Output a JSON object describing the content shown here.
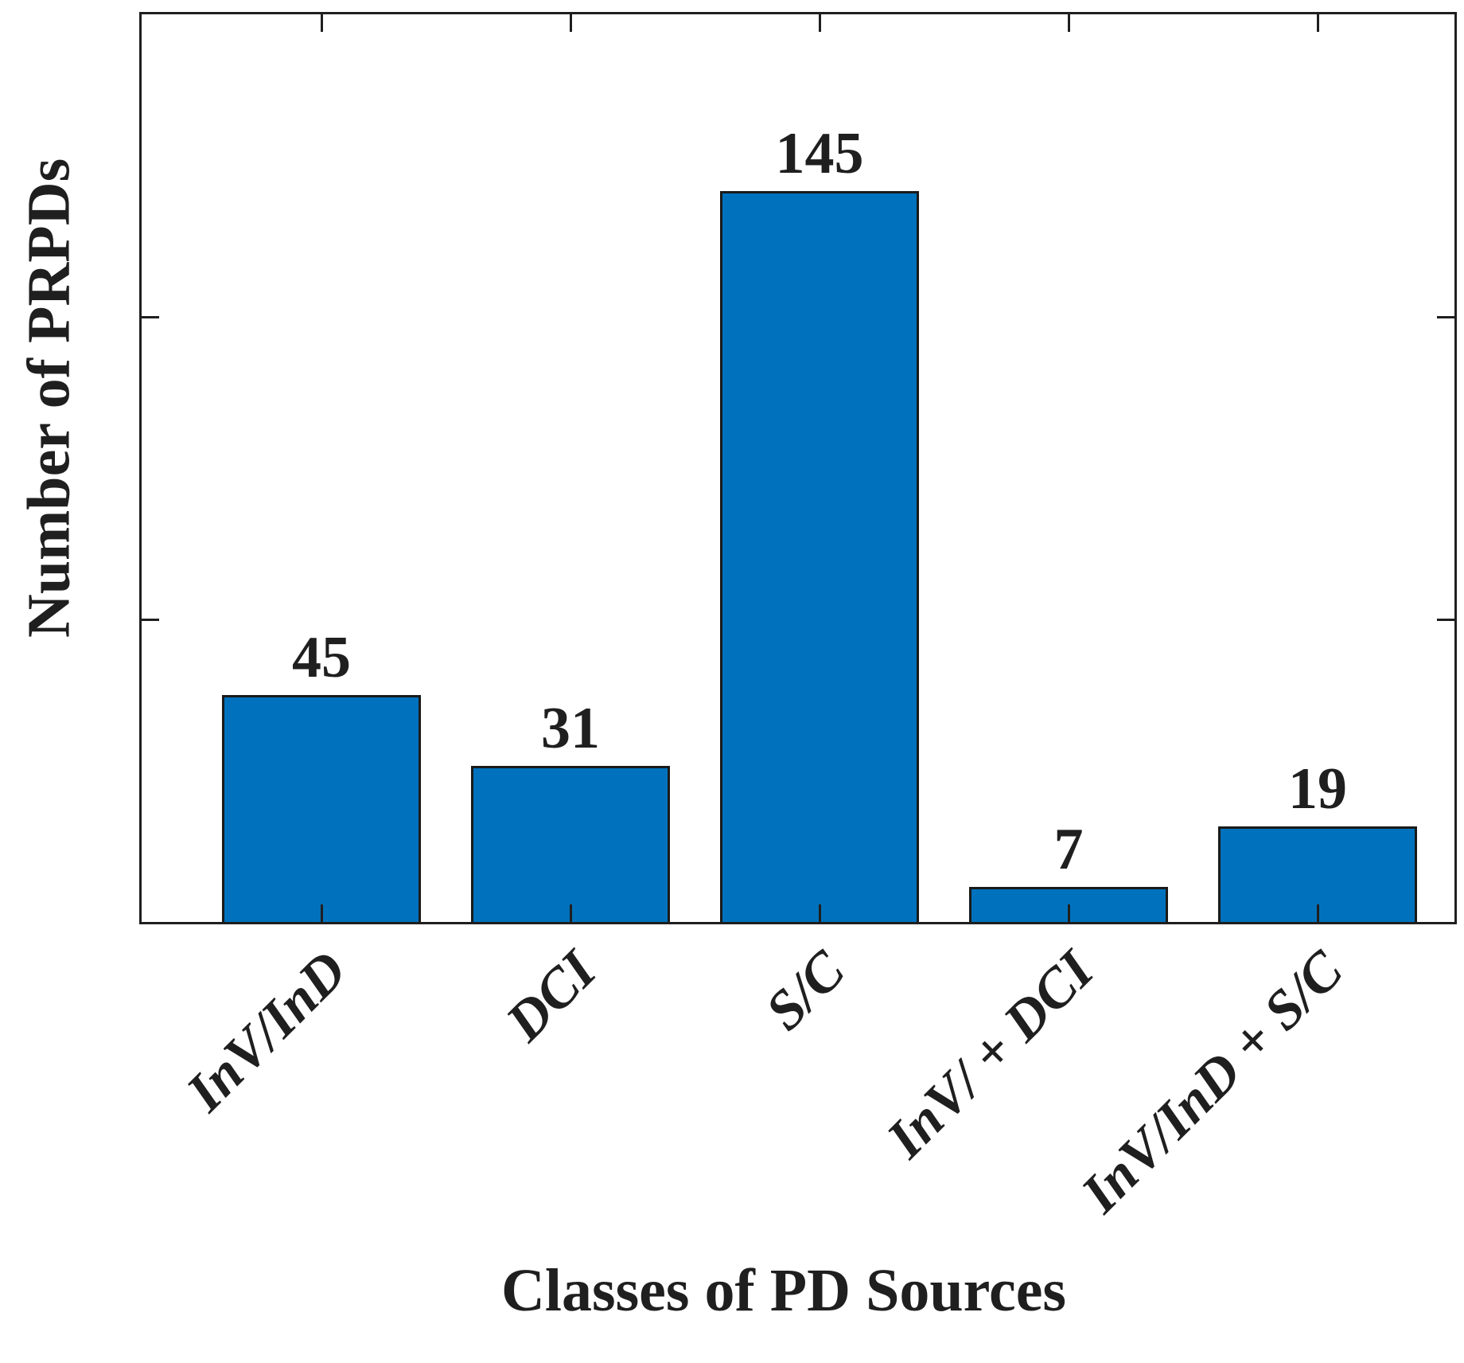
{
  "chart_data": {
    "type": "bar",
    "title": "",
    "xlabel": "Classes of PD Sources",
    "ylabel": "Number of PRPDs",
    "categories": [
      "InV/InD",
      "DCI",
      "S/C",
      "InV/ + DCI",
      "InV/InD + S/C"
    ],
    "values": [
      45,
      31,
      145,
      7,
      19
    ],
    "value_labels": [
      "45",
      "31",
      "145",
      "7",
      "19"
    ],
    "ylim": [
      0,
      180
    ],
    "yticks": [
      0,
      60,
      120,
      180
    ],
    "xtick_angle_deg": 45,
    "grid": false,
    "legend": null,
    "bar_color": "#0072BD",
    "bar_edge_color": "#1a1a1a",
    "axis_color": "#1f1f1f",
    "text_color": "#1f1f1f"
  }
}
